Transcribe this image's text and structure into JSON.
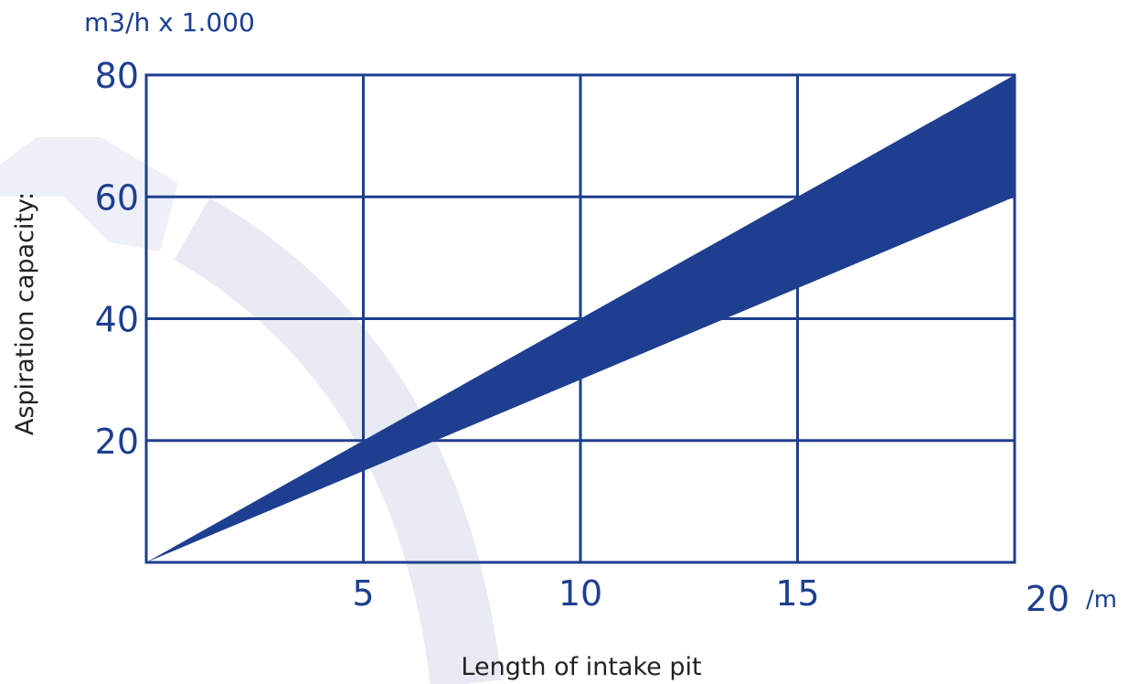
{
  "chart_data": {
    "type": "area",
    "x_unit": "/m",
    "y_unit": "m3/h x 1.000",
    "xlabel": "Length of intake pit",
    "ylabel": "Aspiration capacity:",
    "xlim": [
      0,
      20
    ],
    "ylim": [
      0,
      80
    ],
    "x_ticks": [
      "5",
      "10",
      "15",
      "20"
    ],
    "y_ticks": [
      "20",
      "40",
      "60",
      "80"
    ],
    "grid": true,
    "band": {
      "x": [
        0,
        20
      ],
      "upper": [
        0,
        80
      ],
      "lower": [
        0,
        60
      ]
    },
    "colors": {
      "band": "#1e3f8f",
      "axis": "#1e3f8f",
      "text": "#1e3f8f",
      "axis_label": "#222222",
      "watermark": "#e8ebf3"
    }
  }
}
